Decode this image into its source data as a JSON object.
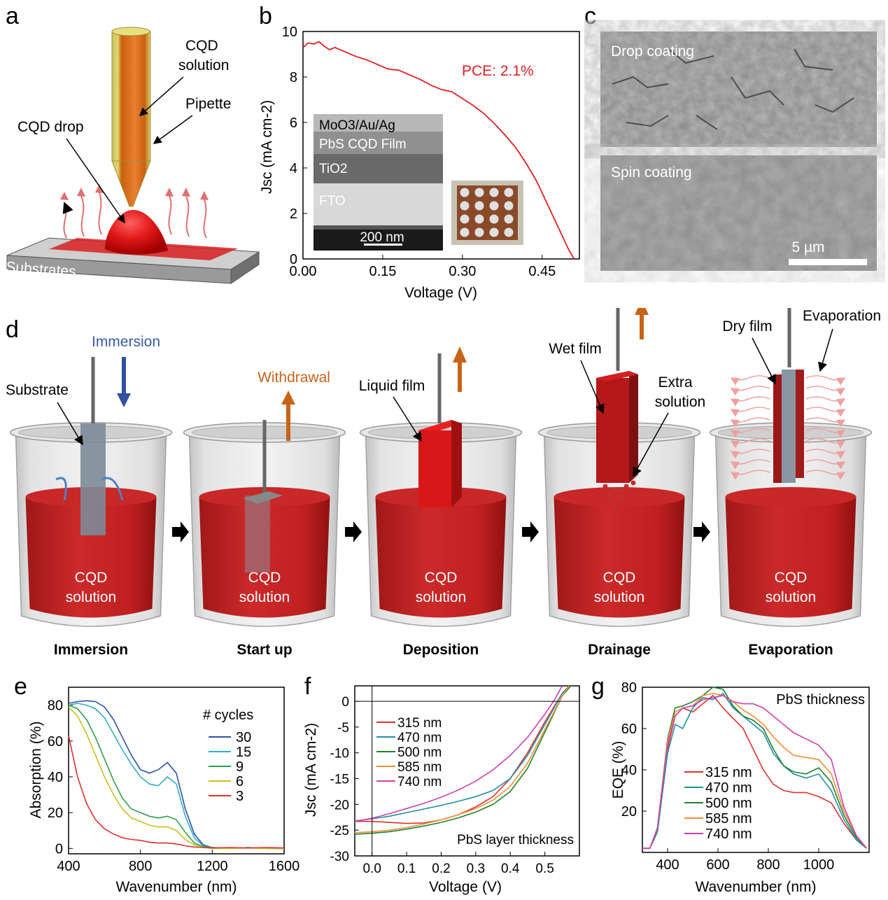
{
  "panel_a": {
    "letter": "a",
    "labels": {
      "cqd_solution_1": "CQD",
      "cqd_solution_2": "solution",
      "pipette": "Pipette",
      "cqd_drop": "CQD drop",
      "substrates": "Substrates"
    }
  },
  "panel_b": {
    "letter": "b",
    "pce": "PCE: 2.1%",
    "inset_layers": {
      "top": "MoO3/Au/Ag",
      "film": "PbS CQD Film",
      "tio2": "TiO2",
      "fto": "FTO",
      "scale": "200 nm"
    }
  },
  "panel_c": {
    "letter": "c",
    "top_label": "Drop coating",
    "bottom_label": "Spin coating",
    "scale": "5 µm"
  },
  "panel_d": {
    "letter": "d",
    "steps": [
      {
        "title": "Immersion",
        "liquid_1": "CQD",
        "liquid_2": "solution",
        "annotation": "Immersion",
        "annotation2": "Substrate"
      },
      {
        "title": "Start up",
        "liquid_1": "CQD",
        "liquid_2": "solution",
        "annotation": "Withdrawal"
      },
      {
        "title": "Deposition",
        "liquid_1": "CQD",
        "liquid_2": "solution",
        "annotation": "Liquid film"
      },
      {
        "title": "Drainage",
        "liquid_1": "CQD",
        "liquid_2": "solution",
        "annotation": "Wet film",
        "annotation2": "Extra",
        "annotation3": "solution"
      },
      {
        "title": "Evaporation",
        "liquid_1": "CQD",
        "liquid_2": "solution",
        "annotation": "Dry film",
        "annotation2": "Evaporation"
      }
    ]
  },
  "chart_data": [
    {
      "id": "b",
      "type": "line",
      "xlabel": "Voltage (V)",
      "ylabel": "Jsc (mA cm-2)",
      "xlim": [
        0,
        0.52
      ],
      "ylim": [
        0,
        10
      ],
      "xticks": [
        "0.00",
        "0.15",
        "0.30",
        "0.45"
      ],
      "xtick_values": [
        0,
        0.15,
        0.3,
        0.45
      ],
      "yticks": [
        "0",
        "2",
        "4",
        "6",
        "8",
        "10"
      ],
      "ytick_values": [
        0,
        2,
        4,
        6,
        8,
        10
      ],
      "series": [
        {
          "color": "#e02020",
          "x": [
            0,
            0.01,
            0.02,
            0.03,
            0.04,
            0.05,
            0.06,
            0.08,
            0.1,
            0.12,
            0.14,
            0.16,
            0.18,
            0.2,
            0.22,
            0.24,
            0.26,
            0.28,
            0.3,
            0.32,
            0.34,
            0.36,
            0.38,
            0.4,
            0.42,
            0.44,
            0.46,
            0.48,
            0.5,
            0.51
          ],
          "y": [
            9.3,
            9.5,
            9.45,
            9.55,
            9.35,
            9.2,
            9.3,
            9.1,
            8.9,
            8.75,
            8.55,
            8.35,
            8.3,
            8.1,
            7.9,
            7.65,
            7.45,
            7.35,
            7.05,
            6.75,
            6.4,
            5.95,
            5.45,
            4.9,
            4.2,
            3.4,
            2.4,
            1.4,
            0.4,
            0
          ]
        }
      ]
    },
    {
      "id": "e",
      "type": "line",
      "xlabel": "Wavenumber (nm)",
      "ylabel": "Absorption (%)",
      "xlim": [
        400,
        1600
      ],
      "ylim": [
        -3,
        90
      ],
      "xticks": [
        "400",
        "800",
        "1200",
        "1600"
      ],
      "xtick_values": [
        400,
        800,
        1200,
        1600
      ],
      "yticks": [
        "0",
        "20",
        "40",
        "60",
        "80"
      ],
      "ytick_values": [
        0,
        20,
        40,
        60,
        80
      ],
      "legend_title": "# cycles",
      "series": [
        {
          "name": "30",
          "color": "#3050a8",
          "x": [
            400,
            450,
            500,
            550,
            600,
            650,
            700,
            750,
            800,
            850,
            900,
            950,
            1000,
            1050,
            1100,
            1150,
            1200,
            1300,
            1400,
            1500,
            1600
          ],
          "y": [
            81,
            82,
            82.5,
            82,
            79,
            72,
            62,
            52,
            44,
            42,
            44,
            48,
            42,
            22,
            8,
            2,
            0.5,
            0,
            0.5,
            0,
            0
          ]
        },
        {
          "name": "15",
          "color": "#30b0c0",
          "x": [
            400,
            450,
            500,
            550,
            600,
            650,
            700,
            750,
            800,
            850,
            900,
            950,
            1000,
            1050,
            1100,
            1150,
            1200,
            1300,
            1400,
            1500,
            1600
          ],
          "y": [
            80,
            81,
            80,
            78,
            73,
            64,
            55,
            47,
            40,
            36,
            35,
            40,
            36,
            18,
            6,
            1.5,
            0.5,
            0,
            0.5,
            0,
            0
          ]
        },
        {
          "name": "9",
          "color": "#30a050",
          "x": [
            400,
            450,
            500,
            550,
            600,
            650,
            700,
            750,
            800,
            850,
            900,
            950,
            1000,
            1050,
            1100,
            1150,
            1200,
            1300,
            1400,
            1500,
            1600
          ],
          "y": [
            80,
            78,
            72,
            62,
            50,
            38,
            28,
            22,
            20,
            18,
            17,
            18,
            16,
            9,
            3,
            1,
            0.5,
            0,
            0.5,
            0,
            0
          ]
        },
        {
          "name": "6",
          "color": "#c8c020",
          "x": [
            400,
            450,
            500,
            550,
            600,
            650,
            700,
            750,
            800,
            850,
            900,
            950,
            1000,
            1050,
            1100,
            1150,
            1200,
            1300,
            1400,
            1500,
            1600
          ],
          "y": [
            79,
            74,
            64,
            52,
            40,
            30,
            22,
            17,
            15,
            13,
            12,
            12,
            10,
            5,
            2,
            0.5,
            0,
            0,
            0.3,
            0,
            0
          ]
        },
        {
          "name": "3",
          "color": "#e03030",
          "x": [
            400,
            450,
            500,
            550,
            600,
            650,
            700,
            750,
            800,
            850,
            900,
            950,
            1000,
            1050,
            1100,
            1150,
            1200,
            1300,
            1400,
            1500,
            1600
          ],
          "y": [
            63,
            40,
            25,
            16,
            11,
            8,
            6,
            5,
            4.5,
            3.5,
            3,
            3,
            2.5,
            1.5,
            0.8,
            0.5,
            0.3,
            0.5,
            0.2,
            0.5,
            0.3
          ]
        }
      ]
    },
    {
      "id": "f",
      "type": "line",
      "xlabel": "Voltage (V)",
      "ylabel": "Jsc (mA cm-2)",
      "xlim": [
        -0.05,
        0.6
      ],
      "ylim": [
        -30,
        3
      ],
      "xticks": [
        "0.0",
        "0.1",
        "0.2",
        "0.3",
        "0.4",
        "0.5"
      ],
      "xtick_values": [
        0,
        0.1,
        0.2,
        0.3,
        0.4,
        0.5
      ],
      "yticks": [
        "0",
        "-5",
        "-10",
        "-15",
        "-20",
        "-25",
        "-30"
      ],
      "ytick_values": [
        0,
        -5,
        -10,
        -15,
        -20,
        -25,
        -30
      ],
      "annotation": "PbS layer thickness",
      "series": [
        {
          "name": "315 nm",
          "color": "#e03030",
          "x": [
            -0.05,
            0,
            0.05,
            0.1,
            0.15,
            0.2,
            0.25,
            0.3,
            0.35,
            0.4,
            0.45,
            0.5,
            0.55,
            0.57
          ],
          "y": [
            -23.3,
            -23.3,
            -23.5,
            -23.7,
            -23.6,
            -23.0,
            -22.0,
            -20.5,
            -18.5,
            -15,
            -10,
            -4,
            1.5,
            3
          ]
        },
        {
          "name": "470 nm",
          "color": "#2090a8",
          "x": [
            -0.05,
            0,
            0.05,
            0.1,
            0.15,
            0.2,
            0.25,
            0.3,
            0.35,
            0.4,
            0.45,
            0.5,
            0.55,
            0.57
          ],
          "y": [
            -23.2,
            -22.8,
            -22.3,
            -21.6,
            -20.9,
            -20.2,
            -19.4,
            -18.5,
            -17.3,
            -15,
            -10.5,
            -4.5,
            1.5,
            3
          ]
        },
        {
          "name": "500 nm",
          "color": "#208030",
          "x": [
            -0.05,
            0,
            0.05,
            0.1,
            0.15,
            0.2,
            0.25,
            0.3,
            0.35,
            0.4,
            0.45,
            0.5,
            0.55,
            0.575
          ],
          "y": [
            -25.8,
            -25.6,
            -25.3,
            -24.8,
            -24.2,
            -23.5,
            -22.6,
            -21.5,
            -20,
            -17.5,
            -13,
            -6,
            1,
            3
          ]
        },
        {
          "name": "585 nm",
          "color": "#f09030",
          "x": [
            -0.05,
            0,
            0.05,
            0.1,
            0.15,
            0.2,
            0.25,
            0.3,
            0.35,
            0.4,
            0.45,
            0.5,
            0.55,
            0.57
          ],
          "y": [
            -25.5,
            -25.3,
            -25.0,
            -24.5,
            -23.8,
            -23.0,
            -22.0,
            -20.8,
            -19.2,
            -16.5,
            -12,
            -5.5,
            1,
            3
          ]
        },
        {
          "name": "740 nm",
          "color": "#d040b0",
          "x": [
            -0.05,
            0,
            0.05,
            0.1,
            0.15,
            0.2,
            0.25,
            0.3,
            0.35,
            0.4,
            0.45,
            0.5,
            0.53,
            0.55
          ],
          "y": [
            -23.3,
            -22.7,
            -21.8,
            -20.8,
            -19.8,
            -18.6,
            -17.2,
            -15.5,
            -13.3,
            -10.5,
            -7,
            -2.5,
            0.5,
            3
          ]
        }
      ]
    },
    {
      "id": "g",
      "type": "line",
      "xlabel": "Wavenumber (nm)",
      "ylabel": "EQE (%)",
      "xlim": [
        300,
        1200
      ],
      "ylim": [
        0,
        80
      ],
      "xticks": [
        "400",
        "600",
        "800",
        "1000"
      ],
      "xtick_values": [
        400,
        600,
        800,
        1000
      ],
      "yticks": [
        "20",
        "40",
        "60",
        "80"
      ],
      "ytick_values": [
        20,
        40,
        60,
        80
      ],
      "legend_title": "PbS thickness",
      "series": [
        {
          "name": "315 nm",
          "color": "#e03030",
          "x": [
            300,
            330,
            360,
            400,
            430,
            460,
            500,
            540,
            580,
            620,
            660,
            700,
            740,
            780,
            820,
            860,
            900,
            950,
            1000,
            1050,
            1100,
            1150,
            1190
          ],
          "y": [
            2,
            2,
            10,
            50,
            66,
            70,
            68,
            72,
            76,
            70,
            65,
            60,
            50,
            40,
            33,
            30,
            29,
            29,
            27,
            24,
            14,
            6,
            2
          ]
        },
        {
          "name": "470 nm",
          "color": "#2090a8",
          "x": [
            300,
            330,
            360,
            400,
            430,
            460,
            500,
            540,
            580,
            620,
            660,
            700,
            740,
            780,
            820,
            860,
            900,
            950,
            1000,
            1050,
            1100,
            1150,
            1190
          ],
          "y": [
            2,
            2,
            10,
            48,
            62,
            60,
            70,
            75,
            74,
            77,
            70,
            66,
            62,
            58,
            48,
            42,
            38,
            36,
            38,
            30,
            16,
            6,
            2
          ]
        },
        {
          "name": "500 nm",
          "color": "#208030",
          "x": [
            300,
            330,
            360,
            400,
            430,
            460,
            500,
            540,
            580,
            620,
            660,
            700,
            740,
            780,
            820,
            860,
            900,
            950,
            1000,
            1050,
            1100,
            1150,
            1190
          ],
          "y": [
            2,
            2,
            12,
            55,
            70,
            71,
            73,
            76,
            80,
            79,
            71,
            66,
            64,
            60,
            50,
            42,
            39,
            38,
            41,
            34,
            18,
            7,
            2
          ]
        },
        {
          "name": "585 nm",
          "color": "#f09030",
          "x": [
            300,
            330,
            360,
            400,
            430,
            460,
            500,
            540,
            580,
            620,
            660,
            700,
            740,
            780,
            820,
            860,
            900,
            950,
            1000,
            1050,
            1100,
            1150,
            1190
          ],
          "y": [
            2,
            2,
            12,
            54,
            68,
            70,
            71,
            76,
            77,
            76,
            73,
            69,
            66,
            62,
            56,
            51,
            47,
            46,
            45,
            38,
            20,
            8,
            2
          ]
        },
        {
          "name": "740 nm",
          "color": "#d040b0",
          "x": [
            300,
            330,
            360,
            400,
            430,
            460,
            500,
            540,
            580,
            620,
            660,
            700,
            740,
            780,
            820,
            860,
            900,
            950,
            1000,
            1050,
            1100,
            1150,
            1190
          ],
          "y": [
            2,
            2,
            12,
            52,
            66,
            70,
            71,
            74,
            75,
            76,
            73,
            72,
            72,
            70,
            66,
            62,
            58,
            55,
            52,
            45,
            22,
            8,
            2
          ]
        }
      ]
    }
  ],
  "panel_letters": {
    "e": "e",
    "f": "f",
    "g": "g"
  }
}
